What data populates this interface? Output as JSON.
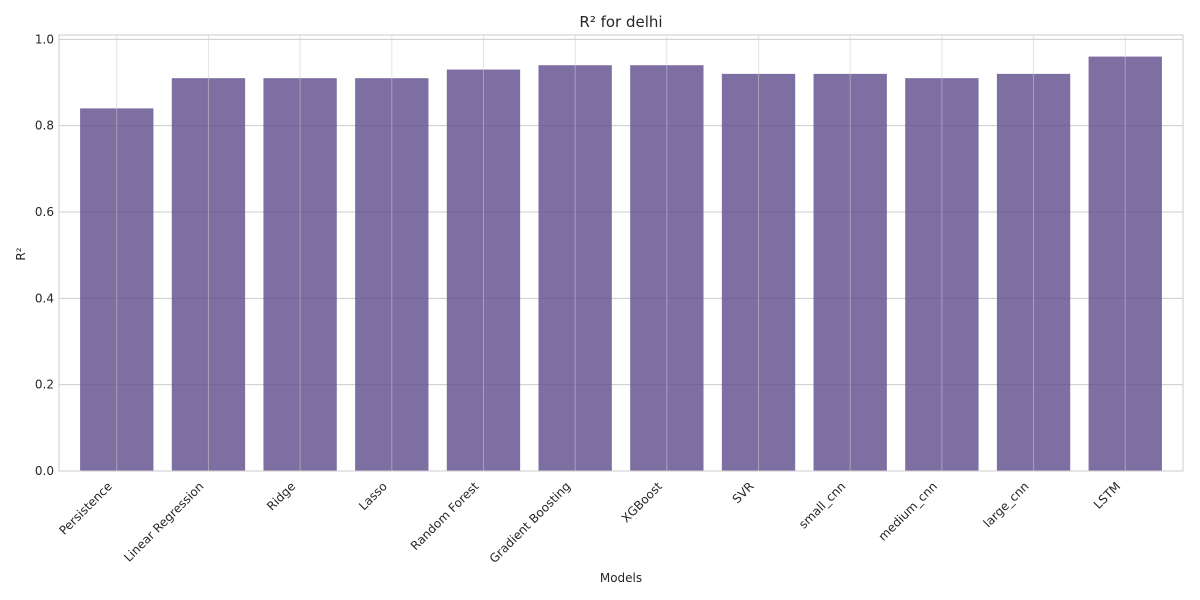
{
  "chart_data": {
    "type": "bar",
    "title": "R² for delhi",
    "xlabel": "Models",
    "ylabel": "R²",
    "categories": [
      "Persistence",
      "Linear Regression",
      "Ridge",
      "Lasso",
      "Random Forest",
      "Gradient Boosting",
      "XGBoost",
      "SVR",
      "small_cnn",
      "medium_cnn",
      "large_cnn",
      "LSTM"
    ],
    "values": [
      0.84,
      0.91,
      0.91,
      0.91,
      0.93,
      0.94,
      0.94,
      0.92,
      0.92,
      0.91,
      0.92,
      0.96
    ],
    "ylim": [
      0,
      1.0
    ],
    "yticks": [
      0.0,
      0.2,
      0.4,
      0.6,
      0.8,
      1.0
    ],
    "ytick_labels": [
      "0.0",
      "0.2",
      "0.4",
      "0.6",
      "0.8",
      "1.0"
    ],
    "grid": true,
    "legend": "none",
    "bar_color": "#5e4b8b",
    "grid_color": "#cccccc",
    "frame_color": "#cccccc"
  }
}
